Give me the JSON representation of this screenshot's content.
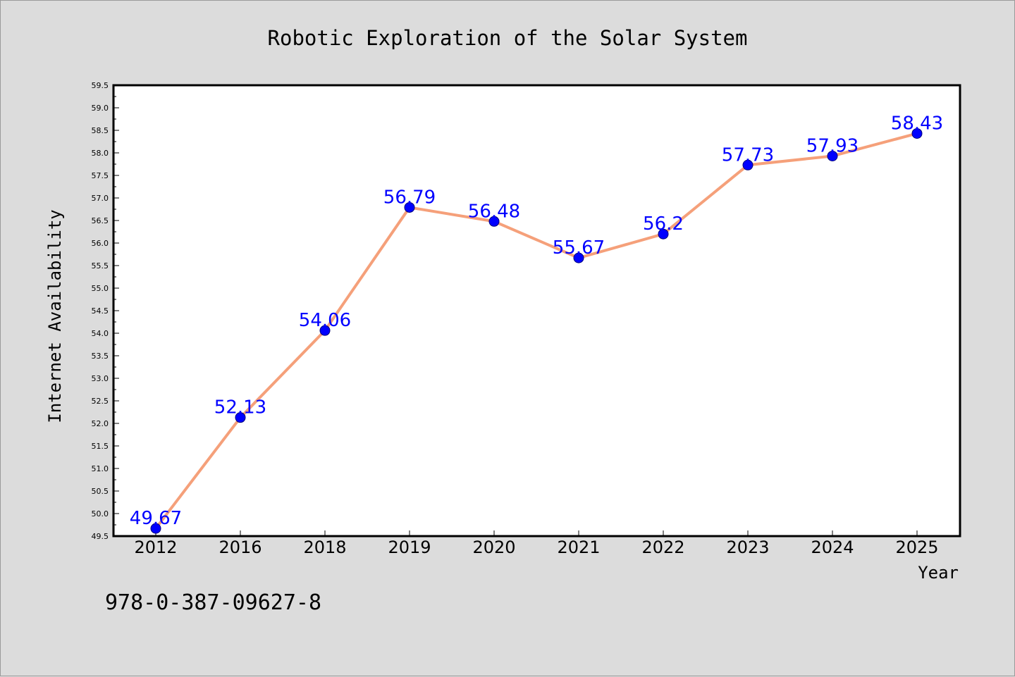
{
  "chart_data": {
    "type": "line",
    "title": "Robotic Exploration of the Solar System",
    "xlabel": "Year",
    "ylabel": "Internet Availability",
    "categories": [
      "2012",
      "2016",
      "2018",
      "2019",
      "2020",
      "2021",
      "2022",
      "2023",
      "2024",
      "2025"
    ],
    "series": [
      {
        "values": [
          49.67,
          52.13,
          54.06,
          56.79,
          56.48,
          55.67,
          56.2,
          57.73,
          57.93,
          58.43
        ],
        "labels": [
          "49.67",
          "52.13",
          "54.06",
          "56.79",
          "56.48",
          "55.67",
          "56.2",
          "57.73",
          "57.93",
          "58.43"
        ],
        "line_color": "#f5a07a",
        "marker_color": "#0000ff"
      }
    ],
    "ylim": [
      49.5,
      59.5
    ],
    "ytick_step": 0.5,
    "grid": false,
    "legend": "none"
  },
  "footer": {
    "code": "978-0-387-09627-8"
  }
}
